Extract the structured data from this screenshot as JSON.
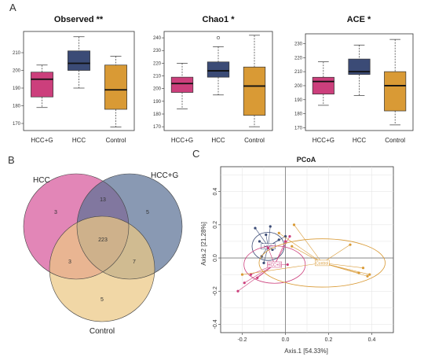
{
  "figure": {
    "panel_letters": [
      "A",
      "B",
      "C"
    ],
    "colors": {
      "hcc_g": "#cc3f7c",
      "hcc": "#3b4b76",
      "control": "#d99a35",
      "venn_hcc": "#d7579b",
      "venn_hccg": "#5c7296",
      "venn_control": "#ecc783"
    }
  },
  "chart_data": [
    {
      "type": "box",
      "title": "Observed **",
      "categories": [
        "HCC+G",
        "HCC",
        "Control"
      ],
      "ylim": [
        166,
        222
      ],
      "yticks": [
        170,
        180,
        190,
        200,
        210
      ],
      "boxes": [
        {
          "group": "HCC+G",
          "whisker_low": 179,
          "q1": 185,
          "median": 195,
          "q3": 199,
          "whisker_high": 203,
          "outliers": []
        },
        {
          "group": "HCC",
          "whisker_low": 190,
          "q1": 200,
          "median": 204,
          "q3": 211,
          "whisker_high": 219,
          "outliers": []
        },
        {
          "group": "Control",
          "whisker_low": 168,
          "q1": 178,
          "median": 189,
          "q3": 203,
          "whisker_high": 208,
          "outliers": []
        }
      ]
    },
    {
      "type": "box",
      "title": "Chao1 *",
      "categories": [
        "HCC+G",
        "HCC",
        "Control"
      ],
      "ylim": [
        167,
        245
      ],
      "yticks": [
        170,
        180,
        190,
        200,
        210,
        220,
        230,
        240
      ],
      "boxes": [
        {
          "group": "HCC+G",
          "whisker_low": 184,
          "q1": 197,
          "median": 204,
          "q3": 209,
          "whisker_high": 220,
          "outliers": []
        },
        {
          "group": "HCC",
          "whisker_low": 195,
          "q1": 209,
          "median": 214,
          "q3": 221,
          "whisker_high": 233,
          "outliers": [
            240
          ]
        },
        {
          "group": "Control",
          "whisker_low": 170,
          "q1": 179,
          "median": 202,
          "q3": 217,
          "whisker_high": 242,
          "outliers": []
        }
      ]
    },
    {
      "type": "box",
      "title": "ACE *",
      "categories": [
        "HCC+G",
        "HCC",
        "Control"
      ],
      "ylim": [
        168,
        237
      ],
      "yticks": [
        170,
        180,
        190,
        200,
        210,
        220,
        230
      ],
      "boxes": [
        {
          "group": "HCC+G",
          "whisker_low": 186,
          "q1": 194,
          "median": 203,
          "q3": 206,
          "whisker_high": 217,
          "outliers": []
        },
        {
          "group": "HCC",
          "whisker_low": 193,
          "q1": 208,
          "median": 210,
          "q3": 219,
          "whisker_high": 229,
          "outliers": []
        },
        {
          "group": "Control",
          "whisker_low": 172,
          "q1": 182,
          "median": 200,
          "q3": 210,
          "whisker_high": 233,
          "outliers": []
        }
      ]
    },
    {
      "type": "venn",
      "sets": [
        "HCC",
        "HCC+G",
        "Control"
      ],
      "regions": [
        {
          "sets": [
            "HCC"
          ],
          "value": 3
        },
        {
          "sets": [
            "HCC+G"
          ],
          "value": 5
        },
        {
          "sets": [
            "Control"
          ],
          "value": 5
        },
        {
          "sets": [
            "HCC",
            "HCC+G"
          ],
          "value": 13
        },
        {
          "sets": [
            "HCC",
            "Control"
          ],
          "value": 3
        },
        {
          "sets": [
            "HCC+G",
            "Control"
          ],
          "value": 7
        },
        {
          "sets": [
            "HCC",
            "HCC+G",
            "Control"
          ],
          "value": 223
        }
      ]
    },
    {
      "type": "scatter",
      "title": "PCoA",
      "xlabel": "Axis.1  [54.33%]",
      "ylabel": "Axis.2  [21.28%]",
      "xlim": [
        -0.3,
        0.5
      ],
      "ylim": [
        -0.45,
        0.55
      ],
      "xticks": [
        -0.2,
        0.0,
        0.2,
        0.4
      ],
      "yticks": [
        -0.4,
        -0.2,
        0.0,
        0.2,
        0.4
      ],
      "grid": true,
      "groups": [
        {
          "name": "HCC",
          "centroid": [
            -0.08,
            0.07
          ],
          "points": [
            [
              -0.14,
              0.18
            ],
            [
              -0.12,
              0.1
            ],
            [
              -0.11,
              0.01
            ],
            [
              -0.09,
              0.14
            ],
            [
              -0.07,
              0.19
            ],
            [
              -0.06,
              0.05
            ],
            [
              -0.03,
              0.11
            ],
            [
              -0.1,
              -0.03
            ],
            [
              0.0,
              0.13
            ]
          ]
        },
        {
          "name": "HCC+G",
          "centroid": [
            -0.05,
            -0.04
          ],
          "points": [
            [
              -0.22,
              -0.2
            ],
            [
              -0.19,
              -0.15
            ],
            [
              -0.16,
              -0.1
            ],
            [
              -0.13,
              -0.12
            ],
            [
              -0.08,
              0.06
            ],
            [
              0.0,
              0.1
            ],
            [
              0.01,
              -0.04
            ],
            [
              0.02,
              0.13
            ]
          ]
        },
        {
          "name": "Control",
          "centroid": [
            0.17,
            -0.03
          ],
          "points": [
            [
              0.04,
              0.2
            ],
            [
              -0.03,
              0.15
            ],
            [
              -0.2,
              -0.1
            ],
            [
              0.3,
              0.08
            ],
            [
              0.34,
              -0.09
            ],
            [
              0.38,
              -0.11
            ],
            [
              0.39,
              -0.1
            ],
            [
              0.36,
              -0.06
            ],
            [
              0.03,
              0.07
            ]
          ]
        }
      ]
    }
  ]
}
